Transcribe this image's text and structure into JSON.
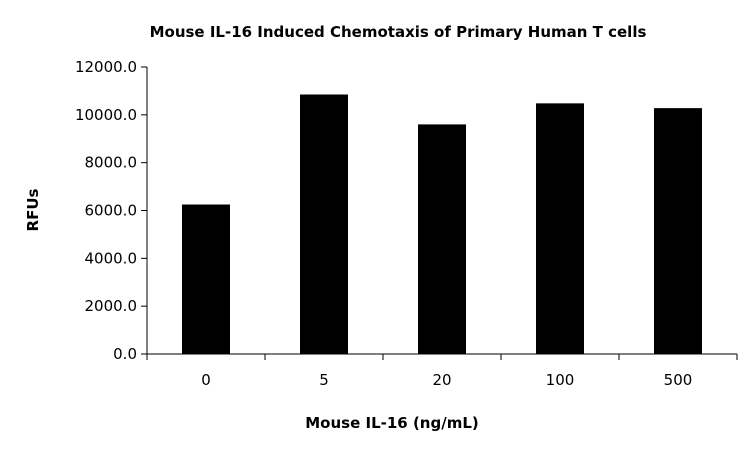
{
  "chart_data": {
    "type": "bar",
    "title": "Mouse IL-16 Induced Chemotaxis of Primary Human T cells",
    "xlabel": "Mouse IL-16 (ng/mL)",
    "ylabel": "RFUs",
    "categories": [
      "0",
      "5",
      "20",
      "100",
      "500"
    ],
    "values": [
      6250,
      10850,
      9600,
      10480,
      10280
    ],
    "ylim": [
      0,
      12000
    ],
    "yticks": [
      0,
      2000,
      4000,
      6000,
      8000,
      10000,
      12000
    ],
    "ytick_labels": [
      "0.0",
      "2000.0",
      "4000.0",
      "6000.0",
      "8000.0",
      "10000.0",
      "12000.0"
    ],
    "bar_color": "#000000",
    "grid": false,
    "legend": "none"
  }
}
